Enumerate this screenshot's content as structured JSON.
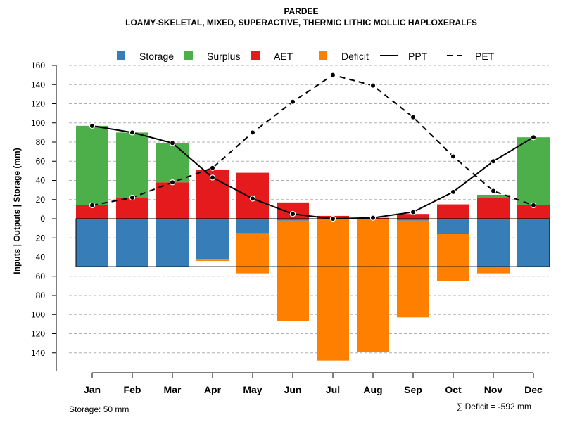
{
  "chart_data": {
    "type": "bar",
    "title": "PARDEE",
    "subtitle": "LOAMY-SKELETAL, MIXED, SUPERACTIVE, THERMIC LITHIC MOLLIC HAPLOXERALFS",
    "ylabel": "Inputs | Outputs | Storage     (mm)",
    "ylim": [
      -160,
      160
    ],
    "yticks": [
      160,
      140,
      120,
      100,
      80,
      60,
      40,
      20,
      0,
      -20,
      -40,
      -60,
      -80,
      -100,
      -120,
      -140
    ],
    "ytick_labels": [
      "160",
      "140",
      "120",
      "100",
      "80",
      "60",
      "40",
      "20",
      "0",
      "20",
      "40",
      "60",
      "80",
      "100",
      "120",
      "140"
    ],
    "grid": true,
    "storage_capacity": 50,
    "categories": [
      "Jan",
      "Feb",
      "Mar",
      "Apr",
      "May",
      "Jun",
      "Jul",
      "Aug",
      "Sep",
      "Oct",
      "Nov",
      "Dec"
    ],
    "series": [
      {
        "name": "Storage",
        "color": "#377EB8",
        "values": [
          50,
          50,
          50,
          42,
          15,
          2,
          0,
          0,
          2,
          16,
          50,
          50
        ]
      },
      {
        "name": "Surplus",
        "color": "#4DAF4A",
        "values": [
          83,
          68,
          41,
          0,
          0,
          0,
          0,
          0,
          0,
          0,
          3,
          71
        ]
      },
      {
        "name": "AET",
        "color": "#E41A1C",
        "values": [
          14,
          22,
          38,
          51,
          48,
          17,
          3,
          1,
          5,
          15,
          22,
          14
        ]
      },
      {
        "name": "Deficit",
        "color": "#FF7F00",
        "values": [
          0,
          0,
          0,
          2,
          42,
          105,
          148,
          139,
          101,
          49,
          7,
          0
        ]
      },
      {
        "name": "PPT",
        "line": "solid",
        "values": [
          97,
          90,
          79,
          43,
          21,
          5,
          0,
          1,
          7,
          28,
          60,
          85
        ]
      },
      {
        "name": "PET",
        "line": "dashed",
        "values": [
          14,
          22,
          38,
          53,
          90,
          122,
          150,
          139,
          106,
          65,
          29,
          14
        ]
      }
    ],
    "legend": [
      "Storage",
      "Surplus",
      "AET",
      "Deficit",
      "PPT",
      "PET"
    ],
    "legend_position": "top",
    "storage_note": "Storage: 50 mm",
    "deficit_note": "∑ Deficit = -592 mm"
  }
}
